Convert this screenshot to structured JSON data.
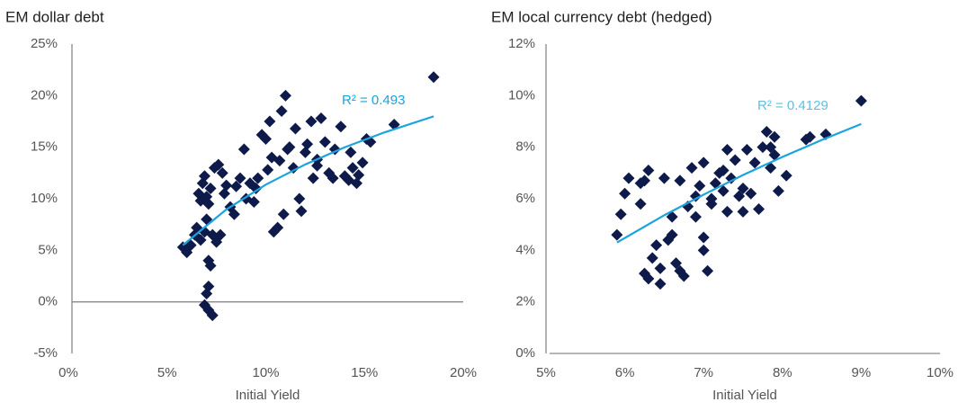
{
  "chart_data": [
    {
      "type": "scatter",
      "title": "EM dollar debt",
      "xlabel": "Initial Yield",
      "color": "#0d1a4a",
      "xlim": [
        0,
        20
      ],
      "ylim": [
        -5,
        25
      ],
      "xticks": [
        {
          "value": 0,
          "label": "0%"
        },
        {
          "value": 5,
          "label": "5%"
        },
        {
          "value": 10,
          "label": "10%"
        },
        {
          "value": 15,
          "label": "15%"
        },
        {
          "value": 20,
          "label": "20%"
        }
      ],
      "yticks": [
        {
          "value": -5,
          "label": "-5%"
        },
        {
          "value": 0,
          "label": "0%"
        },
        {
          "value": 5,
          "label": "5%"
        },
        {
          "value": 10,
          "label": "10%"
        },
        {
          "value": 15,
          "label": "15%"
        },
        {
          "value": 20,
          "label": "20%"
        },
        {
          "value": 25,
          "label": "25%"
        }
      ],
      "x": [
        5.8,
        6.0,
        6.2,
        6.4,
        6.5,
        6.6,
        6.7,
        6.8,
        6.9,
        6.7,
        6.9,
        7.0,
        7.0,
        7.1,
        7.2,
        7.3,
        7.1,
        7.2,
        7.1,
        7.0,
        6.9,
        7.1,
        7.3,
        7.4,
        7.6,
        7.5,
        7.7,
        7.8,
        7.9,
        8.2,
        8.4,
        8.5,
        8.7,
        8.9,
        9.0,
        9.2,
        9.4,
        9.6,
        9.8,
        10.0,
        10.1,
        10.2,
        10.4,
        10.6,
        10.7,
        10.8,
        10.9,
        11.0,
        11.1,
        11.2,
        11.4,
        11.5,
        11.7,
        11.8,
        12.0,
        12.1,
        12.3,
        12.4,
        12.6,
        12.8,
        13.0,
        13.2,
        13.4,
        13.5,
        13.8,
        14.0,
        14.2,
        14.4,
        14.6,
        14.7,
        14.9,
        15.1,
        15.3,
        16.5,
        18.5,
        9.5,
        10.3,
        12.6,
        14.3,
        8.0
      ],
      "values": [
        5.3,
        4.8,
        5.5,
        6.5,
        7.2,
        10.5,
        9.8,
        11.5,
        12.2,
        6.0,
        6.8,
        8.0,
        10.2,
        9.5,
        11.0,
        6.5,
        4.0,
        3.5,
        1.5,
        0.8,
        -0.3,
        -0.8,
        -1.3,
        13.0,
        13.3,
        5.8,
        6.5,
        12.5,
        10.5,
        9.2,
        8.5,
        11.2,
        12.0,
        14.8,
        10.0,
        11.5,
        9.7,
        12.0,
        16.2,
        15.8,
        12.8,
        17.5,
        6.8,
        7.2,
        13.7,
        18.5,
        8.5,
        20.0,
        14.8,
        15.0,
        13.0,
        16.8,
        10.0,
        8.8,
        14.5,
        15.3,
        17.5,
        12.0,
        13.2,
        17.8,
        15.5,
        12.5,
        12.0,
        14.8,
        17.0,
        12.2,
        11.8,
        13.0,
        11.5,
        12.3,
        13.5,
        15.8,
        15.5,
        17.2,
        21.8,
        11.0,
        14.0,
        13.8,
        14.5,
        11.3
      ],
      "trendline": {
        "label": "R² = 0.493",
        "color": "#1ba3dc",
        "x": [
          5.8,
          8,
          10,
          12,
          14,
          16,
          18.5
        ],
        "values": [
          5.5,
          8.96,
          11.37,
          13.33,
          14.99,
          16.43,
          17.99
        ]
      }
    },
    {
      "type": "scatter",
      "title": "EM local currency debt (hedged)",
      "xlabel": "Initial Yield",
      "color": "#0d1a4a",
      "xlim": [
        5,
        10
      ],
      "ylim": [
        0,
        12
      ],
      "xticks": [
        {
          "value": 5,
          "label": "5%"
        },
        {
          "value": 6,
          "label": "6%"
        },
        {
          "value": 7,
          "label": "7%"
        },
        {
          "value": 8,
          "label": "8%"
        },
        {
          "value": 9,
          "label": "9%"
        },
        {
          "value": 10,
          "label": "10%"
        }
      ],
      "yticks": [
        {
          "value": 0,
          "label": "0%"
        },
        {
          "value": 2,
          "label": "2%"
        },
        {
          "value": 4,
          "label": "4%"
        },
        {
          "value": 6,
          "label": "6%"
        },
        {
          "value": 8,
          "label": "8%"
        },
        {
          "value": 10,
          "label": "10%"
        },
        {
          "value": 12,
          "label": "12%"
        }
      ],
      "x": [
        5.9,
        5.95,
        6.0,
        6.05,
        6.2,
        6.25,
        6.3,
        6.25,
        6.3,
        6.35,
        6.4,
        6.45,
        6.45,
        6.5,
        6.55,
        6.6,
        6.6,
        6.65,
        6.7,
        6.7,
        6.75,
        6.8,
        6.85,
        6.9,
        6.9,
        6.95,
        7.0,
        7.0,
        7.0,
        7.05,
        7.1,
        7.15,
        7.2,
        7.25,
        7.3,
        7.3,
        7.35,
        7.4,
        7.45,
        7.5,
        7.55,
        7.6,
        7.65,
        7.7,
        7.75,
        7.8,
        7.85,
        7.9,
        7.9,
        7.95,
        8.05,
        8.3,
        8.35,
        8.55,
        9.0,
        7.1,
        7.25,
        6.2,
        7.5,
        7.85
      ],
      "values": [
        4.6,
        5.4,
        6.2,
        6.8,
        5.8,
        6.7,
        7.1,
        3.1,
        2.9,
        3.7,
        4.2,
        3.3,
        2.7,
        6.8,
        4.4,
        5.3,
        4.6,
        3.5,
        3.2,
        6.7,
        3.0,
        5.7,
        7.2,
        6.1,
        5.3,
        6.5,
        7.4,
        4.5,
        4.0,
        3.2,
        5.8,
        6.6,
        7.0,
        6.3,
        7.9,
        5.5,
        6.8,
        7.5,
        6.1,
        5.5,
        7.9,
        6.2,
        7.4,
        5.6,
        8.0,
        8.6,
        7.2,
        8.4,
        7.7,
        6.3,
        6.9,
        8.3,
        8.4,
        8.5,
        9.8,
        6.0,
        7.1,
        6.6,
        6.4,
        8.0
      ],
      "trendline": {
        "label": "R² = 0.4129",
        "color": "#1ba3dc",
        "x": [
          5.9,
          6.5,
          7,
          7.5,
          8,
          8.5,
          9
        ],
        "values": [
          4.3,
          5.36,
          6.16,
          6.92,
          7.62,
          8.28,
          8.9
        ]
      }
    }
  ]
}
